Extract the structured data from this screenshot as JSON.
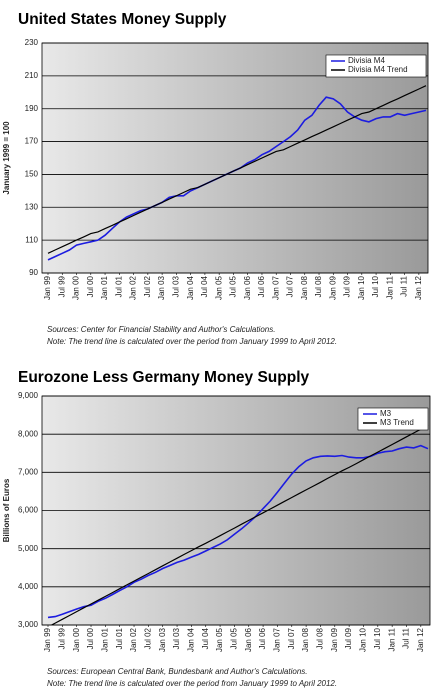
{
  "chart_data": [
    {
      "type": "line",
      "title": "United States Money Supply",
      "y_label": "January 1999 = 100",
      "categories": [
        "Jan 99",
        null,
        "Jul 99",
        null,
        "Jan 00",
        null,
        "Jul 00",
        null,
        "Jan 01",
        null,
        "Jul 01",
        null,
        "Jan 02",
        null,
        "Jul 02",
        null,
        "Jan 03",
        null,
        "Jul 03",
        null,
        "Jan 04",
        null,
        "Jul 04",
        null,
        "Jan 05",
        null,
        "Jul 05",
        null,
        "Jan 06",
        null,
        "Jul 06",
        null,
        "Jan 07",
        null,
        "Jul 07",
        null,
        "Jan 08",
        null,
        "Jul 08",
        null,
        "Jan 09",
        null,
        "Jul 09",
        null,
        "Jan 10",
        null,
        "Jul 10",
        null,
        "Jan 11",
        null,
        "Jul 11",
        null,
        "Jan 12",
        null
      ],
      "series": [
        {
          "name": "Divisia M4",
          "color": "#1c1ce0",
          "values": [
            98,
            100,
            102,
            104,
            107,
            108,
            109,
            110,
            113,
            117,
            121,
            124,
            126,
            128,
            129,
            131,
            133,
            136,
            137,
            137,
            140,
            142,
            144,
            146,
            148,
            150,
            152,
            154,
            157,
            159,
            162,
            164,
            167,
            170,
            173,
            177,
            183,
            186,
            192,
            197,
            196,
            193,
            188,
            185,
            183,
            182,
            184,
            185,
            185,
            187,
            186,
            187,
            188,
            189
          ]
        },
        {
          "name": "Divisia M4 Trend",
          "color": "#000000",
          "values": [
            102,
            104,
            106,
            108,
            110,
            112,
            114,
            115,
            117,
            119,
            121,
            123,
            125,
            127,
            129,
            131,
            133,
            135,
            137,
            139,
            141,
            142,
            144,
            146,
            148,
            150,
            152,
            154,
            156,
            158,
            160,
            162,
            164,
            165,
            167,
            169,
            171,
            173,
            175,
            177,
            179,
            181,
            183,
            185,
            187,
            188,
            190,
            192,
            194,
            196,
            198,
            200,
            202,
            204
          ]
        }
      ],
      "ylim": [
        90,
        230
      ],
      "yticks": [
        90,
        110,
        130,
        150,
        170,
        190,
        210,
        230
      ],
      "grid": true,
      "legend": "upper right",
      "sources": "Sources: Center for Financial Stability and Author's Calculations.",
      "note": "Note: The trend line is calculated over the period from January 1999 to April 2012."
    },
    {
      "type": "line",
      "title": "Eurozone Less Germany Money Supply",
      "y_label": "Billions of Euros",
      "categories": [
        "Jan 99",
        null,
        "Jul 99",
        null,
        "Jan 00",
        null,
        "Jul 00",
        null,
        "Jan 01",
        null,
        "Jul 01",
        null,
        "Jan 02",
        null,
        "Jul 02",
        null,
        "Jan 03",
        null,
        "Jul 03",
        null,
        "Jan 04",
        null,
        "Jul 04",
        null,
        "Jan 05",
        null,
        "Jul 05",
        null,
        "Jan 06",
        null,
        "Jul 06",
        null,
        "Jan 07",
        null,
        "Jul 07",
        null,
        "Jan 08",
        null,
        "Jul 08",
        null,
        "Jan 09",
        null,
        "Jul 09",
        null,
        "Jan 10",
        null,
        "Jul 10",
        null,
        "Jan 11",
        null,
        "Jul 11",
        null,
        "Jan 12",
        null
      ],
      "series": [
        {
          "name": "M3",
          "color": "#1c1ce0",
          "values": [
            3200,
            3220,
            3280,
            3350,
            3420,
            3480,
            3520,
            3620,
            3700,
            3800,
            3900,
            4000,
            4120,
            4200,
            4300,
            4380,
            4480,
            4560,
            4640,
            4700,
            4780,
            4850,
            4940,
            5030,
            5120,
            5230,
            5380,
            5520,
            5680,
            5850,
            6050,
            6250,
            6480,
            6720,
            6960,
            7150,
            7300,
            7380,
            7420,
            7430,
            7420,
            7440,
            7400,
            7380,
            7380,
            7420,
            7500,
            7540,
            7560,
            7620,
            7660,
            7640,
            7700,
            7620
          ]
        },
        {
          "name": "M3 Trend",
          "color": "#000000",
          "values": [
            2950,
            3050,
            3150,
            3250,
            3350,
            3450,
            3550,
            3650,
            3750,
            3850,
            3950,
            4050,
            4150,
            4250,
            4350,
            4450,
            4550,
            4650,
            4750,
            4850,
            4950,
            5050,
            5140,
            5240,
            5340,
            5440,
            5540,
            5640,
            5740,
            5840,
            5940,
            6040,
            6140,
            6240,
            6340,
            6440,
            6540,
            6640,
            6740,
            6840,
            6940,
            7040,
            7130,
            7230,
            7330,
            7430,
            7530,
            7630,
            7730,
            7830,
            7930,
            8030,
            8130,
            8230
          ]
        }
      ],
      "ylim": [
        3000,
        9000
      ],
      "yticks": [
        {
          "value": 3000,
          "label": "3,000"
        },
        {
          "value": 4000,
          "label": "4,000"
        },
        {
          "value": 5000,
          "label": "5,000"
        },
        {
          "value": 6000,
          "label": "6,000"
        },
        {
          "value": 7000,
          "label": "7,000"
        },
        {
          "value": 8000,
          "label": "8,000"
        },
        {
          "value": 9000,
          "label": "9,000"
        }
      ],
      "grid": true,
      "legend": "upper right",
      "sources": "Sources: European Central Bank, Bundesbank and Author's Calculations.",
      "note": "Note: The trend line is calculated over the period from January 1999 to April 2012."
    }
  ]
}
